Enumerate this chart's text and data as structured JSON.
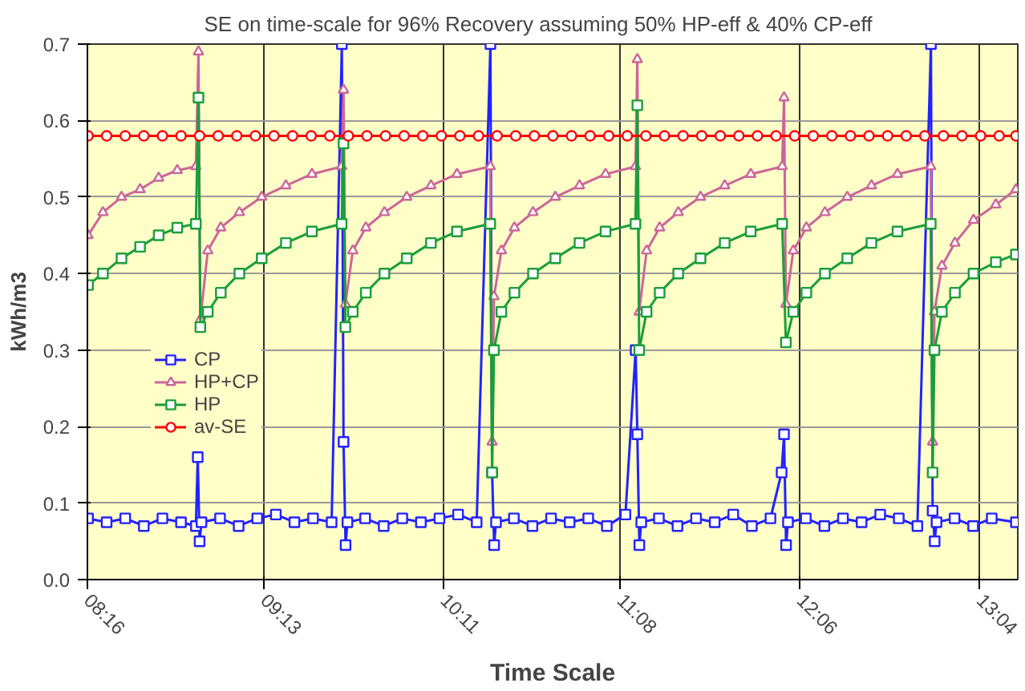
{
  "chart_data": {
    "type": "line",
    "title": "SE on time-scale for  96% Recovery  assuming  50%  HP-eff  & 40% CP-eff",
    "xlabel": "Time Scale",
    "ylabel": "kWh/m3",
    "xlim": [
      8.2667,
      13.27
    ],
    "xticks": [
      {
        "value": 8.2667,
        "label": "08:16"
      },
      {
        "value": 9.2167,
        "label": "09:13"
      },
      {
        "value": 10.1833,
        "label": "10:11"
      },
      {
        "value": 11.1333,
        "label": "11:08"
      },
      {
        "value": 12.1,
        "label": "12:06"
      },
      {
        "value": 13.0667,
        "label": "13:04"
      }
    ],
    "ylim": [
      0,
      0.7
    ],
    "yticks": [
      {
        "value": 0,
        "label": "0.0"
      },
      {
        "value": 0.1,
        "label": "0.1"
      },
      {
        "value": 0.2,
        "label": "0.2"
      },
      {
        "value": 0.3,
        "label": "0.3"
      },
      {
        "value": 0.4,
        "label": "0.4"
      },
      {
        "value": 0.5,
        "label": "0.5"
      },
      {
        "value": 0.6,
        "label": "0.6"
      },
      {
        "value": 0.7,
        "label": "0.7"
      }
    ],
    "grid": true,
    "legend": "left",
    "series": [
      {
        "name": "CP",
        "color": "#2222ff",
        "marker": "square",
        "x": [
          8.27,
          8.37,
          8.47,
          8.57,
          8.67,
          8.77,
          8.85,
          8.86,
          8.87,
          8.88,
          8.98,
          9.08,
          9.18,
          9.28,
          9.38,
          9.48,
          9.58,
          9.635,
          9.644,
          9.655,
          9.665,
          9.76,
          9.86,
          9.96,
          10.06,
          10.16,
          10.26,
          10.36,
          10.434,
          10.443,
          10.454,
          10.464,
          10.56,
          10.66,
          10.76,
          10.86,
          10.96,
          11.06,
          11.16,
          11.215,
          11.224,
          11.235,
          11.245,
          11.34,
          11.44,
          11.54,
          11.64,
          11.74,
          11.84,
          11.94,
          12.0,
          12.013,
          12.024,
          12.034,
          12.13,
          12.23,
          12.33,
          12.43,
          12.53,
          12.63,
          12.73,
          12.803,
          12.812,
          12.823,
          12.833,
          12.93,
          13.03,
          13.13,
          13.26
        ],
        "values": [
          0.08,
          0.075,
          0.08,
          0.07,
          0.08,
          0.075,
          0.07,
          0.16,
          0.05,
          0.075,
          0.08,
          0.07,
          0.08,
          0.085,
          0.075,
          0.08,
          0.075,
          0.7,
          0.18,
          0.045,
          0.075,
          0.08,
          0.07,
          0.08,
          0.075,
          0.08,
          0.085,
          0.075,
          0.7,
          0.14,
          0.045,
          0.075,
          0.08,
          0.07,
          0.08,
          0.075,
          0.08,
          0.07,
          0.085,
          0.3,
          0.19,
          0.045,
          0.075,
          0.08,
          0.07,
          0.08,
          0.075,
          0.085,
          0.07,
          0.08,
          0.14,
          0.19,
          0.045,
          0.075,
          0.08,
          0.07,
          0.08,
          0.075,
          0.085,
          0.08,
          0.07,
          0.7,
          0.09,
          0.05,
          0.075,
          0.08,
          0.07,
          0.08,
          0.075
        ]
      },
      {
        "name": "HP+CP",
        "color": "#cc6699",
        "marker": "triangle",
        "x": [
          8.27,
          8.35,
          8.45,
          8.55,
          8.65,
          8.75,
          8.85,
          8.864,
          8.874,
          8.914,
          8.984,
          9.084,
          9.204,
          9.334,
          9.474,
          9.634,
          9.644,
          9.654,
          9.694,
          9.764,
          9.864,
          9.984,
          10.114,
          10.254,
          10.433,
          10.443,
          10.453,
          10.493,
          10.563,
          10.663,
          10.783,
          10.913,
          11.053,
          11.214,
          11.224,
          11.234,
          11.274,
          11.344,
          11.444,
          11.564,
          11.694,
          11.834,
          12.003,
          12.013,
          12.023,
          12.063,
          12.133,
          12.233,
          12.353,
          12.483,
          12.623,
          12.802,
          12.812,
          12.822,
          12.862,
          12.932,
          13.032,
          13.152,
          13.26
        ],
        "values": [
          0.45,
          0.48,
          0.5,
          0.51,
          0.525,
          0.535,
          0.54,
          0.69,
          0.34,
          0.43,
          0.46,
          0.48,
          0.5,
          0.515,
          0.53,
          0.54,
          0.64,
          0.36,
          0.43,
          0.46,
          0.48,
          0.5,
          0.515,
          0.53,
          0.54,
          0.18,
          0.37,
          0.43,
          0.46,
          0.48,
          0.5,
          0.515,
          0.53,
          0.54,
          0.68,
          0.35,
          0.43,
          0.46,
          0.48,
          0.5,
          0.515,
          0.53,
          0.54,
          0.63,
          0.36,
          0.43,
          0.46,
          0.48,
          0.5,
          0.515,
          0.53,
          0.54,
          0.18,
          0.35,
          0.41,
          0.44,
          0.47,
          0.49,
          0.51
        ]
      },
      {
        "name": "HP",
        "color": "#1a9e3a",
        "marker": "square",
        "x": [
          8.27,
          8.35,
          8.45,
          8.55,
          8.65,
          8.75,
          8.85,
          8.864,
          8.874,
          8.914,
          8.984,
          9.084,
          9.204,
          9.334,
          9.474,
          9.634,
          9.644,
          9.654,
          9.694,
          9.764,
          9.864,
          9.984,
          10.114,
          10.254,
          10.433,
          10.443,
          10.453,
          10.493,
          10.563,
          10.663,
          10.783,
          10.913,
          11.053,
          11.214,
          11.224,
          11.234,
          11.274,
          11.344,
          11.444,
          11.564,
          11.694,
          11.834,
          12.003,
          12.023,
          12.063,
          12.133,
          12.233,
          12.353,
          12.483,
          12.623,
          12.802,
          12.812,
          12.822,
          12.862,
          12.932,
          13.032,
          13.152,
          13.26
        ],
        "values": [
          0.385,
          0.4,
          0.42,
          0.435,
          0.45,
          0.46,
          0.465,
          0.63,
          0.33,
          0.35,
          0.375,
          0.4,
          0.42,
          0.44,
          0.455,
          0.465,
          0.57,
          0.33,
          0.35,
          0.375,
          0.4,
          0.42,
          0.44,
          0.455,
          0.465,
          0.14,
          0.3,
          0.35,
          0.375,
          0.4,
          0.42,
          0.44,
          0.455,
          0.465,
          0.62,
          0.3,
          0.35,
          0.375,
          0.4,
          0.42,
          0.44,
          0.455,
          0.465,
          0.31,
          0.35,
          0.375,
          0.4,
          0.42,
          0.44,
          0.455,
          0.465,
          0.14,
          0.3,
          0.35,
          0.375,
          0.4,
          0.415,
          0.425
        ]
      },
      {
        "name": "av-SE",
        "color": "#ff0000",
        "marker": "circle",
        "x": [
          8.27,
          8.37,
          8.47,
          8.57,
          8.67,
          8.77,
          8.87,
          8.97,
          9.07,
          9.17,
          9.27,
          9.37,
          9.47,
          9.57,
          9.67,
          9.77,
          9.87,
          9.97,
          10.07,
          10.17,
          10.27,
          10.37,
          10.47,
          10.57,
          10.67,
          10.77,
          10.87,
          10.97,
          11.07,
          11.17,
          11.27,
          11.37,
          11.47,
          11.57,
          11.67,
          11.77,
          11.87,
          11.97,
          12.07,
          12.17,
          12.27,
          12.37,
          12.47,
          12.57,
          12.67,
          12.77,
          12.87,
          12.97,
          13.07,
          13.17,
          13.26
        ],
        "values": [
          0.58,
          0.58,
          0.58,
          0.58,
          0.58,
          0.58,
          0.58,
          0.58,
          0.58,
          0.58,
          0.58,
          0.58,
          0.58,
          0.58,
          0.58,
          0.58,
          0.58,
          0.58,
          0.58,
          0.58,
          0.58,
          0.58,
          0.58,
          0.58,
          0.58,
          0.58,
          0.58,
          0.58,
          0.58,
          0.58,
          0.58,
          0.58,
          0.58,
          0.58,
          0.58,
          0.58,
          0.58,
          0.58,
          0.58,
          0.58,
          0.58,
          0.58,
          0.58,
          0.58,
          0.58,
          0.58,
          0.58,
          0.58,
          0.58,
          0.58,
          0.58
        ]
      }
    ]
  }
}
